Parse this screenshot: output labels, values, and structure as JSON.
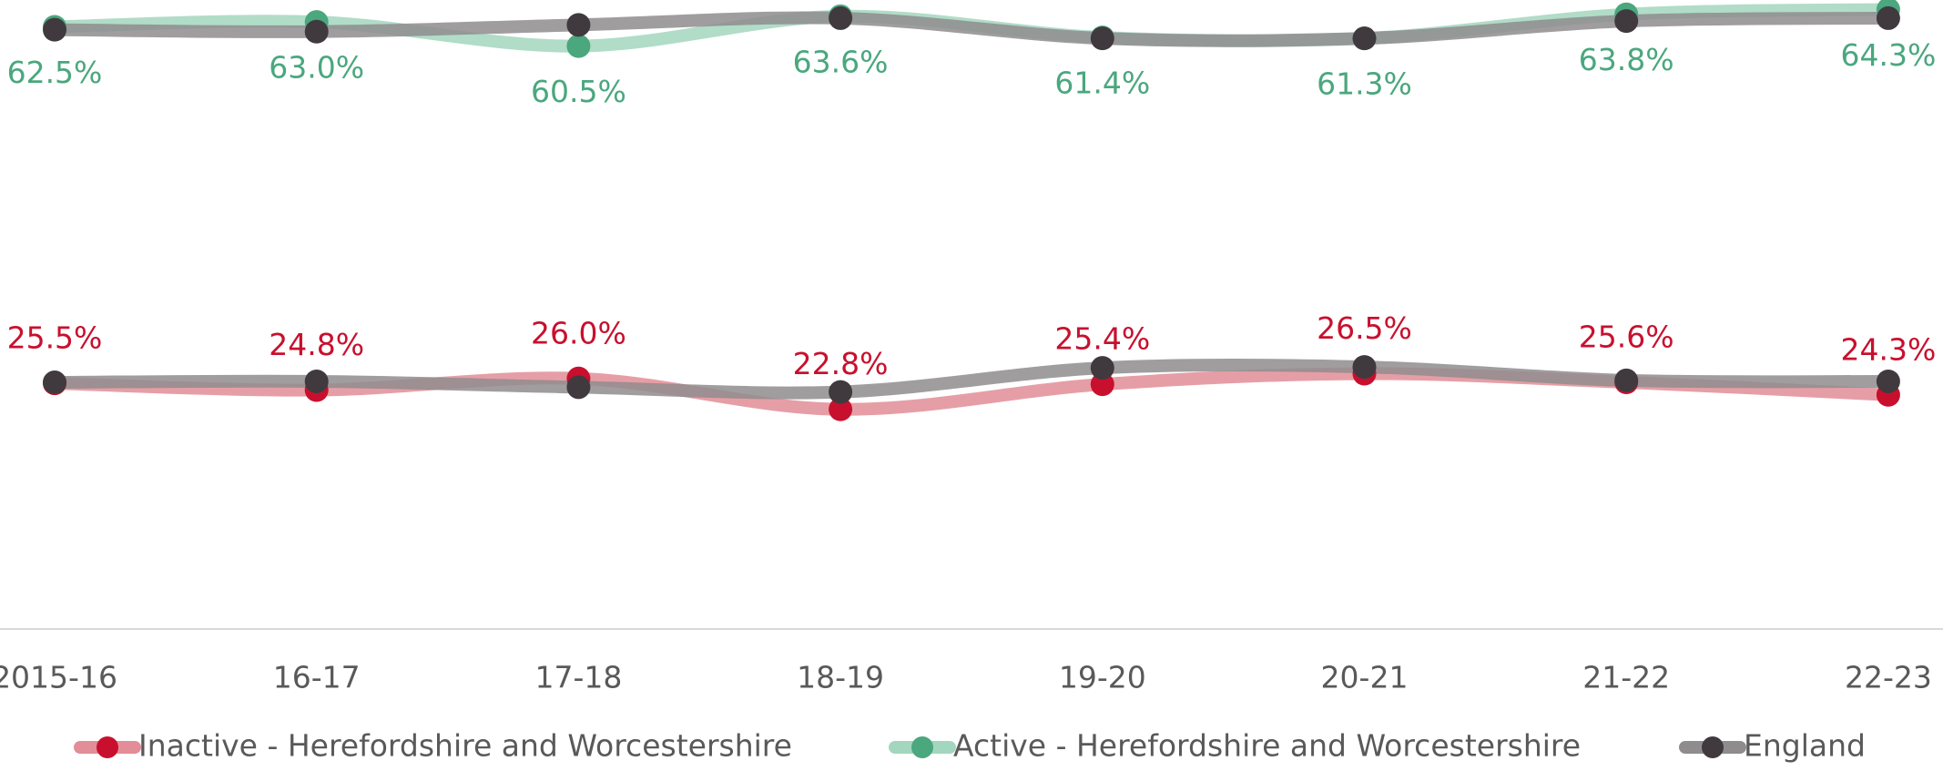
{
  "chart_data": {
    "type": "line",
    "categories": [
      "2015-16",
      "16-17",
      "17-18",
      "18-19",
      "19-20",
      "20-21",
      "21-22",
      "22-23"
    ],
    "series": [
      {
        "name": "Inactive - Herefordshire and Worcestershire",
        "color": "#c8102e",
        "line_color": "#e28d97",
        "values": [
          25.5,
          24.8,
          26.0,
          22.8,
          25.4,
          26.5,
          25.6,
          24.3
        ],
        "value_labels": [
          "25.5%",
          "24.8%",
          "26.0%",
          "22.8%",
          "25.4%",
          "26.5%",
          "25.6%",
          "24.3%"
        ]
      },
      {
        "name": "Active - Herefordshire and Worcestershire",
        "color": "#4aa77e",
        "line_color": "#a3d6be",
        "values": [
          62.5,
          63.0,
          60.5,
          63.6,
          61.4,
          61.3,
          63.8,
          64.3
        ],
        "value_labels": [
          "62.5%",
          "63.0%",
          "60.5%",
          "63.6%",
          "61.4%",
          "61.3%",
          "63.8%",
          "64.3%"
        ]
      },
      {
        "name": "England",
        "color": "#403a3f",
        "line_color": "#8f8c8e",
        "values": [
          25.6,
          25.7,
          25.1,
          24.6,
          27.1,
          27.2,
          25.8,
          25.7
        ]
      },
      {
        "color": "#403a3f",
        "line_color": "#8f8c8e",
        "values": [
          62.2,
          62.0,
          62.7,
          63.4,
          61.3,
          61.3,
          63.1,
          63.4
        ]
      }
    ],
    "ylim": [
      0,
      65
    ]
  }
}
